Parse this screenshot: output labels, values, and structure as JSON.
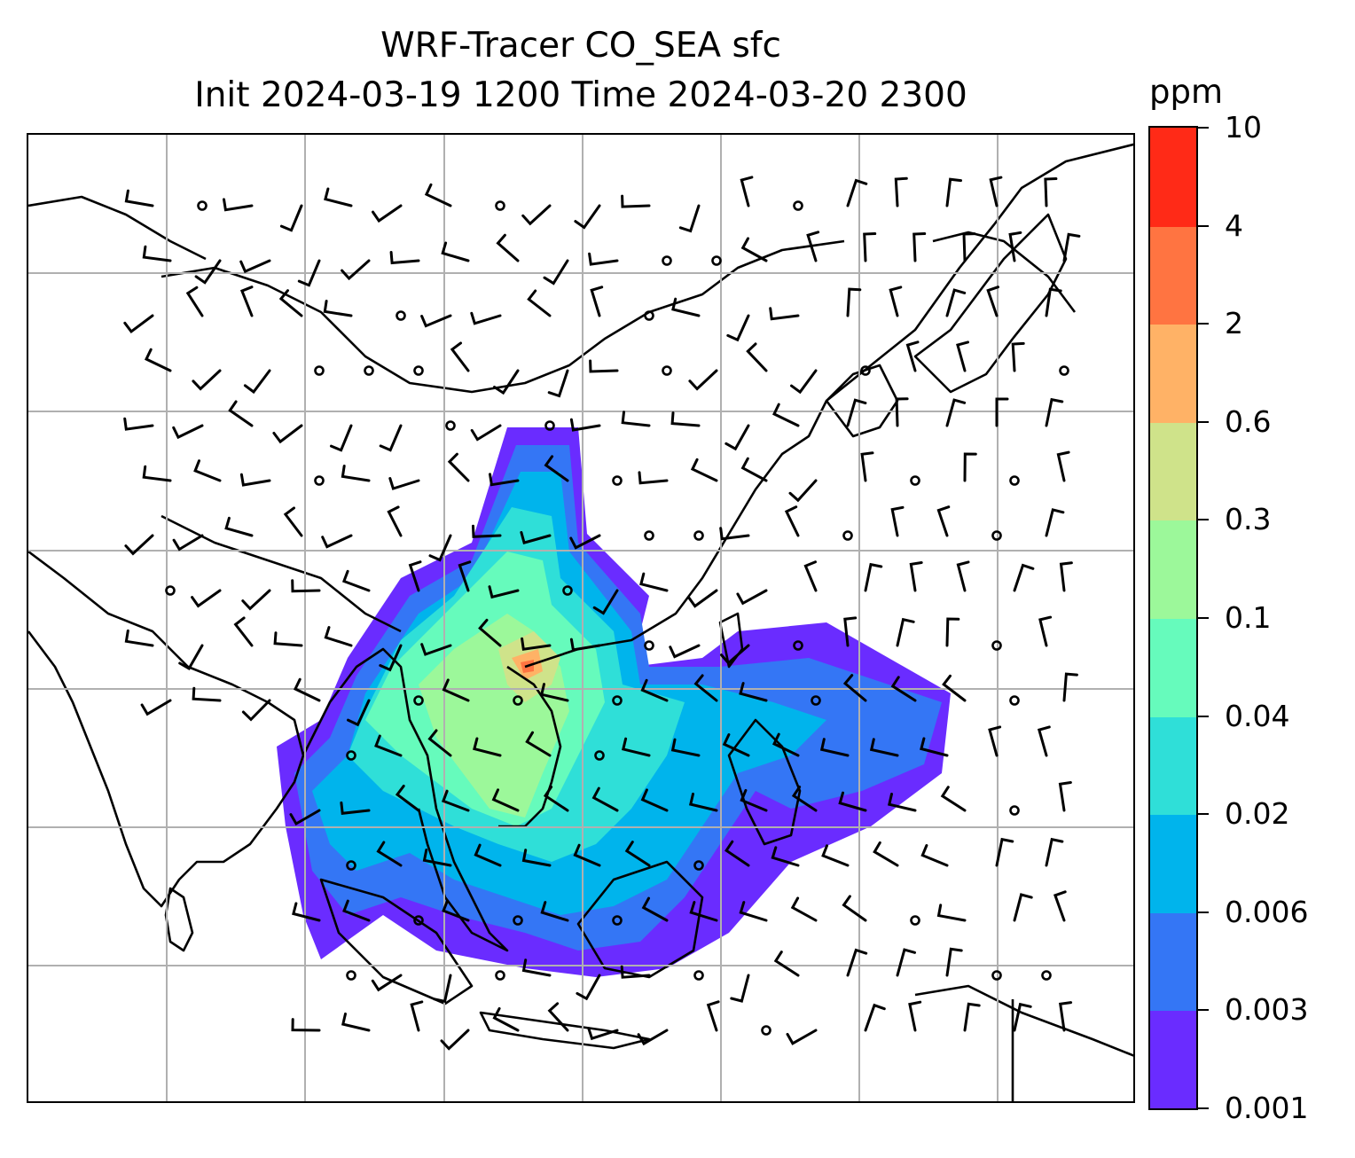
{
  "title": {
    "line1": "WRF-Tracer CO_SEA sfc",
    "line2": "Init 2024-03-19 1200 Time 2024-03-20 2300"
  },
  "colorbar": {
    "unit": "ppm",
    "levels": [
      "0.001",
      "0.003",
      "0.006",
      "0.02",
      "0.04",
      "0.1",
      "0.3",
      "0.6",
      "2",
      "4",
      "10"
    ],
    "colors": [
      "#6a2cff",
      "#3476f5",
      "#00b4ec",
      "#2fdfd8",
      "#66fbbc",
      "#9cf89a",
      "#cfe38a",
      "#ffb266",
      "#ff7441",
      "#ff2a17"
    ]
  },
  "map": {
    "type": "contourf-with-wind-barbs",
    "colors": {
      "land": "#000000",
      "grid": "#b0b0b0",
      "barbs": "#000000"
    }
  }
}
